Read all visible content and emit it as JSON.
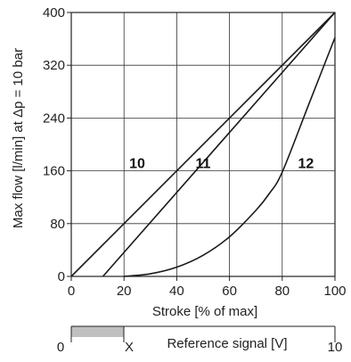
{
  "chart_data": {
    "type": "line",
    "xlabel": "Stroke [% of max]",
    "ylabel": "Max flow [l/min] at Δp = 10 bar",
    "xlim": [
      0,
      100
    ],
    "ylim": [
      0,
      400
    ],
    "x_ticks": [
      "0",
      "20",
      "40",
      "60",
      "80",
      "100"
    ],
    "y_ticks": [
      "0",
      "80",
      "160",
      "240",
      "320",
      "400"
    ],
    "grid": true,
    "series": [
      {
        "name": "10",
        "x": [
          0,
          100
        ],
        "y": [
          0,
          400
        ]
      },
      {
        "name": "11",
        "x": [
          12,
          100
        ],
        "y": [
          0,
          400
        ]
      },
      {
        "name": "12",
        "x": [
          20,
          30,
          40,
          50,
          60,
          70,
          75,
          80,
          90,
          100
        ],
        "y": [
          0,
          4,
          14,
          32,
          60,
          100,
          125,
          158,
          260,
          362
        ]
      }
    ],
    "reference_axis": {
      "label": "Reference signal [V]",
      "start_label": "0",
      "x_label": "X",
      "end_label": "10",
      "shaded_fraction": 0.2,
      "shade_color": "#bfbfbf"
    }
  }
}
